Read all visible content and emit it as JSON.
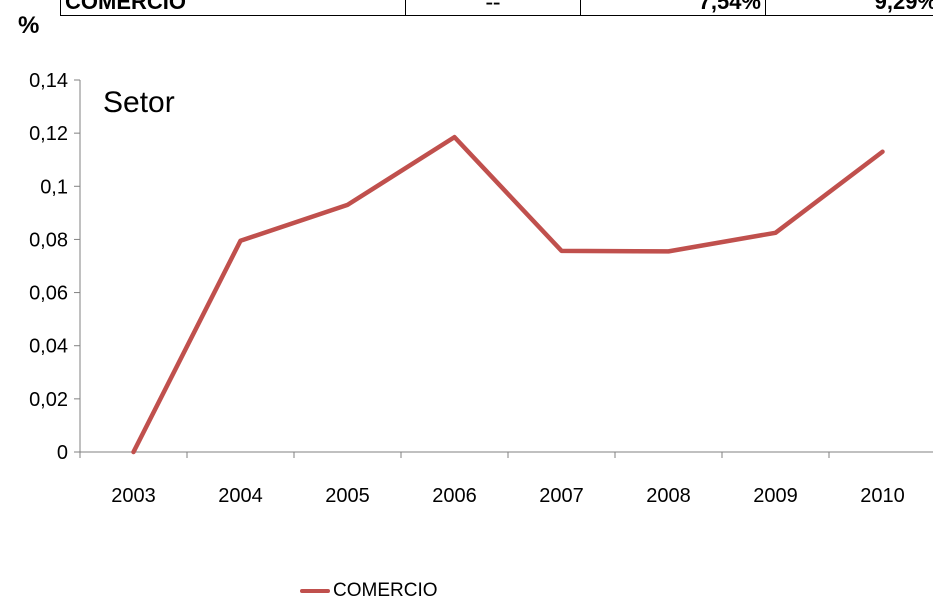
{
  "table_strip": {
    "label": "COMERCIO",
    "col2": "--",
    "col3": "7,54%",
    "col4": "9,29%"
  },
  "unit_label": "%",
  "chart_data": {
    "type": "line",
    "title": "Setor",
    "xlabel": "",
    "ylabel": "%",
    "categories": [
      "2003",
      "2004",
      "2005",
      "2006",
      "2007",
      "2008",
      "2009",
      "2010"
    ],
    "series": [
      {
        "name": "COMERCIO",
        "color": "#c0504d",
        "values": [
          0,
          0.0795,
          0.093,
          0.1185,
          0.0757,
          0.0755,
          0.0825,
          0.113
        ]
      }
    ],
    "ylim": [
      0,
      0.14
    ],
    "yticks": [
      0,
      0.02,
      0.04,
      0.06,
      0.08,
      0.1,
      0.12,
      0.14
    ],
    "ytick_labels": [
      "0",
      "0,02",
      "0,04",
      "0,06",
      "0,08",
      "0,1",
      "0,12",
      "0,14"
    ],
    "grid": false,
    "legend_position": "bottom"
  }
}
